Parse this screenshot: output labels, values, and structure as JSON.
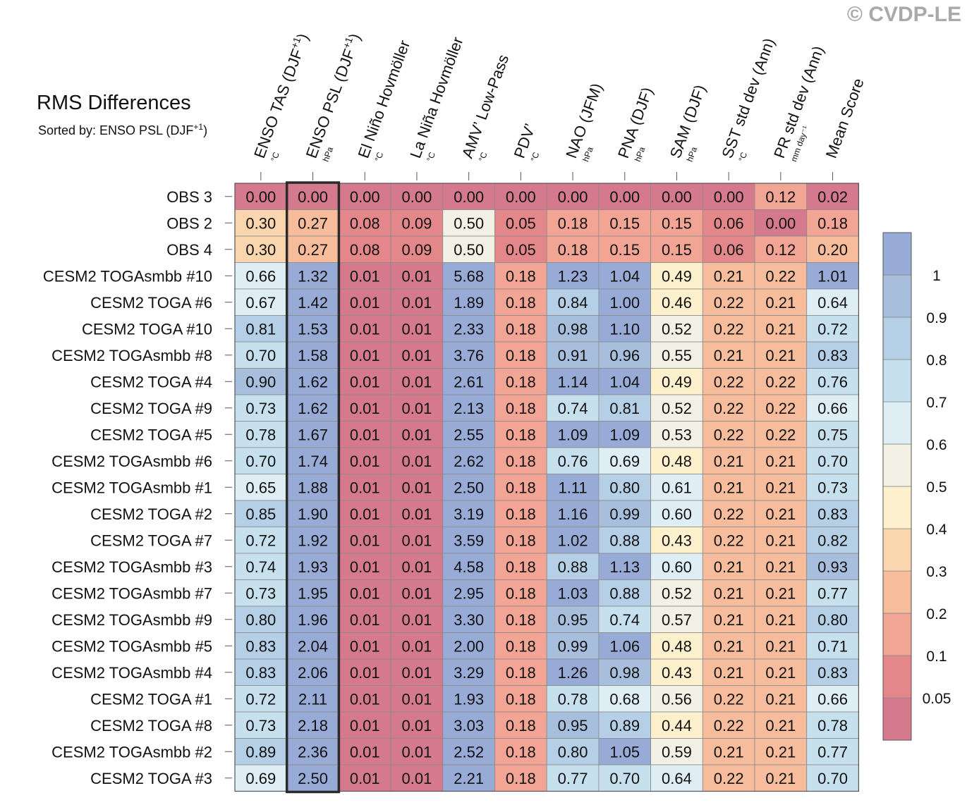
{
  "watermark": "© CVDP-LE",
  "chart_data": {
    "type": "heatmap",
    "title": "RMS Differences",
    "subtitle_prefix": "Sorted by: ENSO PSL (DJF",
    "subtitle_sup": "+1",
    "subtitle_suffix": ")",
    "highlight_column": 1,
    "columns": [
      {
        "name": "ENSO TAS (DJF",
        "sup": "+1",
        "tail": ")",
        "unit": "°C"
      },
      {
        "name": "ENSO PSL (DJF",
        "sup": "+1",
        "tail": ")",
        "unit": "hPa"
      },
      {
        "name": "El Niño Hovmöller",
        "sup": "",
        "tail": "",
        "unit": "°C"
      },
      {
        "name": "La Niña Hovmöller",
        "sup": "",
        "tail": "",
        "unit": "°C"
      },
      {
        "name": "AMV’ Low-Pass",
        "sup": "",
        "tail": "",
        "unit": "°C"
      },
      {
        "name": "PDV’",
        "sup": "",
        "tail": "",
        "unit": "°C"
      },
      {
        "name": "NAO (JFM)",
        "sup": "",
        "tail": "",
        "unit": "hPa"
      },
      {
        "name": "PNA (DJF)",
        "sup": "",
        "tail": "",
        "unit": "hPa"
      },
      {
        "name": "SAM (DJF)",
        "sup": "",
        "tail": "",
        "unit": "hPa"
      },
      {
        "name": "SST std dev (Ann)",
        "sup": "",
        "tail": "",
        "unit": "°C"
      },
      {
        "name": "PR std dev (Ann)",
        "sup": "",
        "tail": "",
        "unit": "mm day⁻¹"
      },
      {
        "name": "Mean Score",
        "sup": "",
        "tail": "",
        "unit": ""
      }
    ],
    "rows": [
      "OBS 3",
      "OBS 2",
      "OBS 4",
      "CESM2 TOGAsmbb #10",
      "CESM2 TOGA #6",
      "CESM2 TOGA #10",
      "CESM2 TOGAsmbb #8",
      "CESM2 TOGA #4",
      "CESM2 TOGA #9",
      "CESM2 TOGA #5",
      "CESM2 TOGAsmbb #6",
      "CESM2 TOGAsmbb #1",
      "CESM2 TOGA #2",
      "CESM2 TOGA #7",
      "CESM2 TOGAsmbb #3",
      "CESM2 TOGAsmbb #7",
      "CESM2 TOGAsmbb #9",
      "CESM2 TOGAsmbb #5",
      "CESM2 TOGAsmbb #4",
      "CESM2 TOGA #1",
      "CESM2 TOGA #8",
      "CESM2 TOGAsmbb #2",
      "CESM2 TOGA #3"
    ],
    "values": [
      [
        0.0,
        0.0,
        0.0,
        0.0,
        0.0,
        0.0,
        0.0,
        0.0,
        0.0,
        0.0,
        0.12,
        0.02
      ],
      [
        0.3,
        0.27,
        0.08,
        0.09,
        0.5,
        0.05,
        0.18,
        0.15,
        0.15,
        0.06,
        0.0,
        0.18
      ],
      [
        0.3,
        0.27,
        0.08,
        0.09,
        0.5,
        0.05,
        0.18,
        0.15,
        0.15,
        0.06,
        0.12,
        0.2
      ],
      [
        0.66,
        1.32,
        0.01,
        0.01,
        5.68,
        0.18,
        1.23,
        1.04,
        0.49,
        0.21,
        0.22,
        1.01
      ],
      [
        0.67,
        1.42,
        0.01,
        0.01,
        1.89,
        0.18,
        0.84,
        1.0,
        0.46,
        0.22,
        0.21,
        0.64
      ],
      [
        0.81,
        1.53,
        0.01,
        0.01,
        2.33,
        0.18,
        0.98,
        1.1,
        0.52,
        0.22,
        0.21,
        0.72
      ],
      [
        0.7,
        1.58,
        0.01,
        0.01,
        3.76,
        0.18,
        0.91,
        0.96,
        0.55,
        0.21,
        0.21,
        0.83
      ],
      [
        0.9,
        1.62,
        0.01,
        0.01,
        2.61,
        0.18,
        1.14,
        1.04,
        0.49,
        0.22,
        0.22,
        0.76
      ],
      [
        0.73,
        1.62,
        0.01,
        0.01,
        2.13,
        0.18,
        0.74,
        0.81,
        0.52,
        0.22,
        0.22,
        0.66
      ],
      [
        0.78,
        1.67,
        0.01,
        0.01,
        2.55,
        0.18,
        1.09,
        1.09,
        0.53,
        0.22,
        0.22,
        0.75
      ],
      [
        0.7,
        1.74,
        0.01,
        0.01,
        2.62,
        0.18,
        0.76,
        0.69,
        0.48,
        0.21,
        0.21,
        0.7
      ],
      [
        0.65,
        1.88,
        0.01,
        0.01,
        2.5,
        0.18,
        1.11,
        0.8,
        0.61,
        0.21,
        0.21,
        0.73
      ],
      [
        0.85,
        1.9,
        0.01,
        0.01,
        3.19,
        0.18,
        1.16,
        0.99,
        0.6,
        0.22,
        0.21,
        0.83
      ],
      [
        0.72,
        1.92,
        0.01,
        0.01,
        3.59,
        0.18,
        1.02,
        0.88,
        0.43,
        0.22,
        0.21,
        0.82
      ],
      [
        0.74,
        1.93,
        0.01,
        0.01,
        4.58,
        0.18,
        0.88,
        1.13,
        0.6,
        0.21,
        0.21,
        0.93
      ],
      [
        0.73,
        1.95,
        0.01,
        0.01,
        2.95,
        0.18,
        1.03,
        0.88,
        0.52,
        0.21,
        0.21,
        0.77
      ],
      [
        0.8,
        1.96,
        0.01,
        0.01,
        3.3,
        0.18,
        0.95,
        0.74,
        0.57,
        0.21,
        0.21,
        0.8
      ],
      [
        0.83,
        2.04,
        0.01,
        0.01,
        2.0,
        0.18,
        0.99,
        1.06,
        0.48,
        0.21,
        0.21,
        0.71
      ],
      [
        0.83,
        2.06,
        0.01,
        0.01,
        3.29,
        0.18,
        1.26,
        0.98,
        0.43,
        0.21,
        0.21,
        0.83
      ],
      [
        0.72,
        2.11,
        0.01,
        0.01,
        1.93,
        0.18,
        0.78,
        0.68,
        0.56,
        0.22,
        0.21,
        0.66
      ],
      [
        0.73,
        2.18,
        0.01,
        0.01,
        3.03,
        0.18,
        0.95,
        0.89,
        0.44,
        0.22,
        0.21,
        0.78
      ],
      [
        0.89,
        2.36,
        0.01,
        0.01,
        2.52,
        0.18,
        0.8,
        1.05,
        0.59,
        0.21,
        0.21,
        0.77
      ],
      [
        0.69,
        2.5,
        0.01,
        0.01,
        2.21,
        0.18,
        0.77,
        0.7,
        0.64,
        0.22,
        0.21,
        0.7
      ]
    ],
    "colorbar": {
      "thresholds": [
        0.05,
        0.1,
        0.2,
        0.3,
        0.4,
        0.5,
        0.6,
        0.7,
        0.8,
        0.9,
        1
      ],
      "labels": [
        "0.05",
        "0.1",
        "0.2",
        "0.3",
        "0.4",
        "0.5",
        "0.6",
        "0.7",
        "0.8",
        "0.9",
        "1"
      ],
      "colors": [
        "#d47a8c",
        "#e3878a",
        "#f3a595",
        "#f6bc9c",
        "#f9d6ad",
        "#fdf0cc",
        "#f3f1e5",
        "#dfeef5",
        "#c7e0ee",
        "#b5cfe6",
        "#a7bedd",
        "#97abd6"
      ]
    }
  }
}
